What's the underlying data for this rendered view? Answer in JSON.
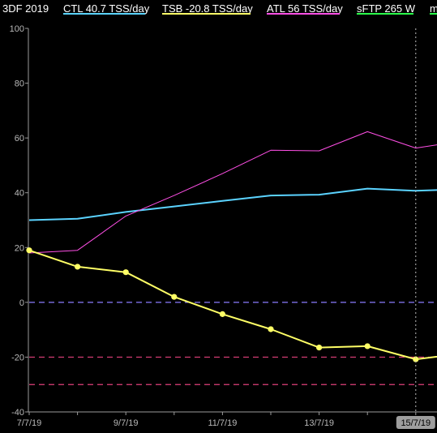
{
  "title": "3DF 2019",
  "legend": [
    {
      "label": "CTL  40.7 TSS/day",
      "color": "#5bd3ff"
    },
    {
      "label": "TSB  -20.8 TSS/day",
      "color": "#ffff66"
    },
    {
      "label": "ATL  56 TSS/day",
      "color": "#ff4fe6"
    },
    {
      "label": "sFTP  265 W",
      "color": "#2bff4b"
    },
    {
      "label": "m",
      "color": "#2bff4b"
    }
  ],
  "colors": {
    "background": "#000000",
    "axis": "#9a9a9a",
    "zero_line": "#8a7cff",
    "threshold": "#e0407a",
    "cursor": "#bdbdbd",
    "highlight_bg": "#9e9e9e",
    "highlight_text": "#000000"
  },
  "chart_data": {
    "type": "line",
    "title": "3DF 2019",
    "x": [
      0,
      1,
      2,
      3,
      4,
      5,
      6,
      7,
      8,
      9
    ],
    "tick_labels": [
      {
        "x": 0,
        "label": "7/7/19"
      },
      {
        "x": 2,
        "label": "9/7/19"
      },
      {
        "x": 4,
        "label": "11/7/19"
      },
      {
        "x": 6,
        "label": "13/7/19"
      },
      {
        "x": 8,
        "label": "15/7/19",
        "highlight": true
      }
    ],
    "ylim": [
      -40,
      100
    ],
    "yticks": [
      -40,
      -20,
      0,
      20,
      40,
      60,
      80,
      100
    ],
    "series": [
      {
        "name": "CTL",
        "color": "#5bd3ff",
        "width": 2,
        "markers": false,
        "values": [
          30,
          30.5,
          33,
          35,
          37,
          39,
          39.3,
          41.5,
          40.7,
          41.3
        ]
      },
      {
        "name": "ATL",
        "color": "#ff4fe6",
        "width": 1,
        "markers": false,
        "values": [
          18,
          19,
          31.5,
          39,
          47,
          55.5,
          55.3,
          62.3,
          56.3,
          59
        ]
      },
      {
        "name": "TSB",
        "color": "#ffff66",
        "width": 2,
        "markers": true,
        "values": [
          19,
          13,
          11,
          2,
          -4.3,
          -9.8,
          -16.5,
          -16,
          -20.8,
          -18.6
        ]
      }
    ],
    "reference_lines": [
      {
        "y": 0,
        "color": "#8a7cff"
      },
      {
        "y": -20,
        "color": "#e0407a"
      },
      {
        "y": -30,
        "color": "#e0407a"
      }
    ],
    "cursor_x": 8,
    "grid": false
  }
}
